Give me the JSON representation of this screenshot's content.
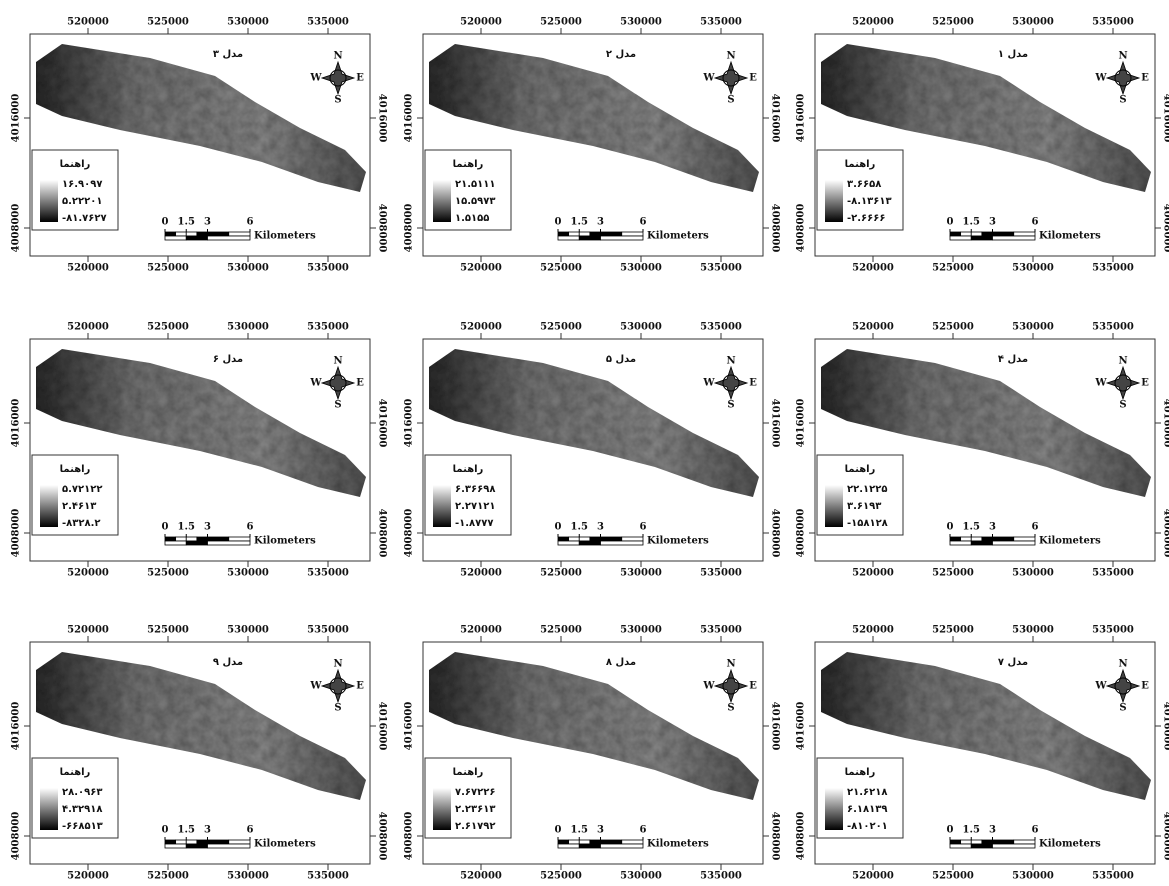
{
  "axes": {
    "xticks": [
      520000,
      525000,
      530000,
      535000
    ],
    "yticks": [
      4016000,
      4008000
    ]
  },
  "compass": {
    "n": "N",
    "s": "S",
    "w": "W",
    "e": "E"
  },
  "legend_title": "راهنما",
  "scale_bar": {
    "ticks": [
      0,
      1.5,
      3,
      6
    ],
    "unit": "Kilometers"
  },
  "panels": [
    {
      "title": "مدل ۱",
      "legend_values": [
        "۳.۶۶۵۸",
        "-۸.۱۳۶۱۳",
        "-۲.۶۶۶۶"
      ]
    },
    {
      "title": "مدل ۲",
      "legend_values": [
        "۲۱.۵۱۱۱",
        "۱۵.۵۹۷۳",
        "۱.۵۱۵۵"
      ]
    },
    {
      "title": "مدل ۳",
      "legend_values": [
        "۱۶.۹۰۹۷",
        "۵.۲۲۲۰۱",
        "-۸۱.۷۶۲۷"
      ]
    },
    {
      "title": "مدل ۴",
      "legend_values": [
        "۲۲.۱۲۲۵",
        "۳.۶۱۹۳",
        "-۱۵۸۱۲۸"
      ]
    },
    {
      "title": "مدل ۵",
      "legend_values": [
        "۶.۳۶۶۹۸",
        "۲.۲۷۱۲۱",
        "-۱.۸۷۷۷"
      ]
    },
    {
      "title": "مدل ۶",
      "legend_values": [
        "۵.۷۲۱۲۲",
        "۲.۴۶۱۳",
        "-۸۳۲۸.۲"
      ]
    },
    {
      "title": "مدل ۷",
      "legend_values": [
        "۲۱.۶۲۱۸",
        "۶.۱۸۱۳۹",
        "-۸۱۰۲۰۱"
      ]
    },
    {
      "title": "مدل ۸",
      "legend_values": [
        "۷.۶۷۲۲۶",
        "۲.۲۳۶۱۳",
        "۲.۶۱۷۹۲"
      ]
    },
    {
      "title": "مدل ۹",
      "legend_values": [
        "۲۸.۰۹۶۳",
        "۴.۳۲۹۱۸",
        "-۶۶۸۵۱۳"
      ]
    }
  ]
}
